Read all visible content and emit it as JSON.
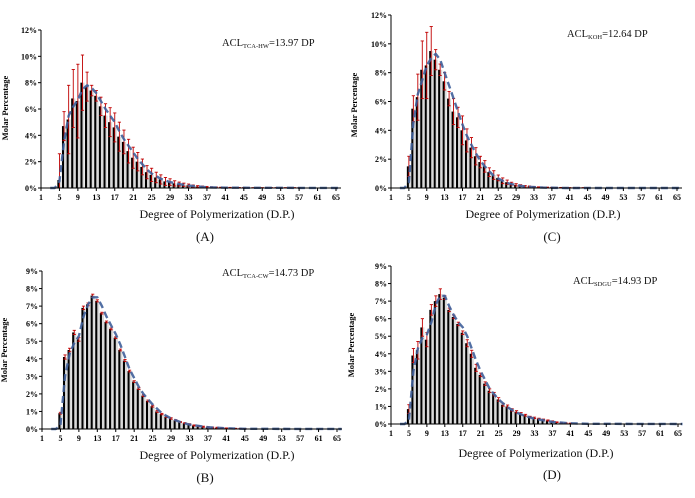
{
  "colors": {
    "bar": "#000000",
    "bar_alt": "#d9d9d9",
    "error": "#c00000",
    "fit": "#3f5f9a"
  },
  "chart_data": [
    {
      "id": "A",
      "type": "bar",
      "panel_label": "(A)",
      "annotation": {
        "prefix": "ACL",
        "subscript": "TCA-HW",
        "suffix": "=13.97  DP"
      },
      "xlabel": "Degree of Polymerization  (D.P.)",
      "ylabel": "Molar Percentage",
      "x_ticks": [
        1,
        5,
        9,
        13,
        17,
        21,
        25,
        29,
        33,
        37,
        41,
        45,
        49,
        53,
        57,
        61,
        65
      ],
      "y_ticks": [
        "0%",
        "2%",
        "4%",
        "6%",
        "8%",
        "10%",
        "12%"
      ],
      "ylim": [
        0,
        12
      ],
      "xlim": [
        1,
        66
      ],
      "x_start": 5,
      "values": [
        0.6,
        4.7,
        5.2,
        6.8,
        6.6,
        8.0,
        7.7,
        7.4,
        7.0,
        6.2,
        5.5,
        5.0,
        4.6,
        3.9,
        3.5,
        2.8,
        2.3,
        2.0,
        1.6,
        1.2,
        1.0,
        0.8,
        0.65,
        0.5,
        0.45,
        0.35,
        0.3,
        0.25,
        0.2,
        0.15,
        0.12,
        0.1,
        0.08,
        0.06,
        0.05,
        0.04,
        0.03,
        0.03,
        0.02,
        0.02,
        0.02,
        0.01,
        0.01,
        0.01,
        0.01,
        0.01,
        0.01,
        0.01,
        0.01,
        0.01,
        0.01,
        0.01,
        0.01
      ],
      "errors": [
        2.0,
        1.1,
        2.6,
        2.2,
        2.8,
        2.1,
        1.1,
        0.4,
        0.4,
        0.7,
        0.9,
        1.1,
        1.1,
        1.1,
        0.9,
        0.9,
        0.8,
        0.7,
        0.6,
        0.5,
        0.5,
        0.4,
        0.35,
        0.3,
        0.25,
        0.2,
        0.15,
        0.12,
        0.1,
        0.08,
        0.06,
        0.05,
        0.04,
        0.03,
        0.03,
        0.02,
        0.02,
        0.02,
        0.02,
        0.02,
        0.02,
        0.02,
        0.02,
        0.02,
        0.02,
        0.02,
        0.02,
        0.02,
        0.02,
        0.02,
        0.02,
        0.02,
        0.02
      ],
      "fit": [
        [
          3,
          0
        ],
        [
          4,
          0
        ],
        [
          5,
          0.5
        ],
        [
          6,
          3.5
        ],
        [
          7,
          5.5
        ],
        [
          8,
          6.2
        ],
        [
          9,
          6.7
        ],
        [
          10,
          7.5
        ],
        [
          11,
          7.8
        ],
        [
          12,
          7.6
        ],
        [
          13,
          7.2
        ],
        [
          14,
          6.6
        ],
        [
          15,
          6.0
        ],
        [
          16,
          5.5
        ],
        [
          17,
          5.0
        ],
        [
          18,
          4.3
        ],
        [
          19,
          3.7
        ],
        [
          20,
          3.2
        ],
        [
          21,
          2.7
        ],
        [
          22,
          2.2
        ],
        [
          23,
          1.8
        ],
        [
          24,
          1.4
        ],
        [
          25,
          1.1
        ],
        [
          27,
          0.7
        ],
        [
          29,
          0.45
        ],
        [
          31,
          0.3
        ],
        [
          33,
          0.18
        ],
        [
          37,
          0.05
        ],
        [
          41,
          0.02
        ],
        [
          66,
          0
        ]
      ]
    },
    {
      "id": "C",
      "type": "bar",
      "panel_label": "(C)",
      "annotation": {
        "prefix": "ACL",
        "subscript": "KOH",
        "suffix": "=12.64  DP"
      },
      "xlabel": "Degree of Polymerization  (D.P.)",
      "ylabel": "Molar Percentage",
      "x_ticks": [
        1,
        5,
        9,
        13,
        17,
        21,
        25,
        29,
        33,
        37,
        41,
        45,
        49,
        53,
        57,
        61,
        65
      ],
      "y_ticks": [
        "0%",
        "2%",
        "4%",
        "6%",
        "8%",
        "10%",
        "12%"
      ],
      "ylim": [
        0,
        12
      ],
      "xlim": [
        1,
        66
      ],
      "x_start": 5,
      "values": [
        1.5,
        5.5,
        6.3,
        8.2,
        8.5,
        9.5,
        8.9,
        8.2,
        7.4,
        6.2,
        5.3,
        4.9,
        4.0,
        3.3,
        2.8,
        2.2,
        1.8,
        1.5,
        1.1,
        0.9,
        0.7,
        0.5,
        0.4,
        0.3,
        0.22,
        0.17,
        0.12,
        0.1,
        0.08,
        0.06,
        0.05,
        0.04,
        0.03,
        0.02,
        0.02,
        0.01,
        0.01,
        0.01,
        0.01,
        0.01,
        0.01
      ],
      "errors": [
        0.7,
        0.9,
        1.6,
        2.0,
        2.3,
        1.7,
        0.7,
        0.4,
        0.6,
        0.5,
        0.9,
        0.7,
        1.0,
        0.8,
        0.7,
        0.6,
        0.4,
        0.4,
        0.3,
        0.3,
        0.2,
        0.2,
        0.15,
        0.1,
        0.08,
        0.06,
        0.05,
        0.04,
        0.03,
        0.02,
        0.02,
        0.02,
        0.02,
        0.02,
        0.02,
        0.02,
        0.02,
        0.02,
        0.02,
        0.02,
        0.02
      ],
      "fit": [
        [
          3,
          0
        ],
        [
          4,
          0
        ],
        [
          5,
          0.4
        ],
        [
          6,
          4.5
        ],
        [
          7,
          6.5
        ],
        [
          8,
          7.5
        ],
        [
          9,
          8.5
        ],
        [
          10,
          9.0
        ],
        [
          11,
          9.3
        ],
        [
          12,
          8.9
        ],
        [
          13,
          8.0
        ],
        [
          14,
          7.1
        ],
        [
          15,
          6.2
        ],
        [
          16,
          5.3
        ],
        [
          17,
          4.4
        ],
        [
          18,
          3.6
        ],
        [
          19,
          3.0
        ],
        [
          20,
          2.4
        ],
        [
          21,
          1.9
        ],
        [
          22,
          1.5
        ],
        [
          23,
          1.15
        ],
        [
          24,
          0.85
        ],
        [
          25,
          0.65
        ],
        [
          27,
          0.35
        ],
        [
          29,
          0.2
        ],
        [
          31,
          0.1
        ],
        [
          35,
          0.03
        ],
        [
          40,
          0
        ],
        [
          66,
          0
        ]
      ]
    },
    {
      "id": "B",
      "type": "bar",
      "panel_label": "(B)",
      "annotation": {
        "prefix": "ACL",
        "subscript": "TCA-CW",
        "suffix": "=14.73  DP"
      },
      "xlabel": "Degree of Polymerization  (D.P.)",
      "ylabel": "Molar Percentage",
      "x_ticks": [
        1,
        5,
        9,
        13,
        17,
        21,
        25,
        29,
        33,
        37,
        41,
        45,
        49,
        53,
        57,
        61,
        65
      ],
      "y_ticks": [
        "0%",
        "1%",
        "2%",
        "3%",
        "4%",
        "5%",
        "6%",
        "7%",
        "8%",
        "9%"
      ],
      "ylim": [
        0,
        9
      ],
      "xlim": [
        1,
        66
      ],
      "x_start": 5,
      "values": [
        0.9,
        4.1,
        4.5,
        5.5,
        5.1,
        6.9,
        7.1,
        7.6,
        7.3,
        6.6,
        6.1,
        5.7,
        5.2,
        4.5,
        3.9,
        3.3,
        2.7,
        2.3,
        1.9,
        1.6,
        1.3,
        1.0,
        0.85,
        0.7,
        0.6,
        0.5,
        0.4,
        0.33,
        0.27,
        0.2,
        0.16,
        0.13,
        0.1,
        0.08,
        0.07,
        0.06,
        0.04,
        0.03,
        0.02,
        0.02,
        0.01
      ],
      "errors": [
        0.05,
        0.12,
        0.1,
        0.12,
        0.1,
        0.1,
        0.08,
        0.08,
        0.06,
        0.05,
        0.05,
        0.05,
        0.05,
        0.05,
        0.06,
        0.05,
        0.05,
        0.05,
        0.05,
        0.05,
        0.05,
        0.05,
        0.04,
        0.04,
        0.04,
        0.03,
        0.03,
        0.03,
        0.03,
        0.03,
        0.03,
        0.03,
        0.03,
        0.03,
        0.03,
        0.03,
        0.02,
        0.02,
        0.02,
        0.02,
        0.02
      ],
      "fit": [
        [
          3,
          0
        ],
        [
          4,
          0
        ],
        [
          5,
          0.2
        ],
        [
          6,
          3.0
        ],
        [
          7,
          4.3
        ],
        [
          8,
          4.9
        ],
        [
          9,
          5.3
        ],
        [
          10,
          6.4
        ],
        [
          11,
          7.1
        ],
        [
          12,
          7.5
        ],
        [
          13,
          7.5
        ],
        [
          14,
          7.0
        ],
        [
          15,
          6.4
        ],
        [
          16,
          5.9
        ],
        [
          17,
          5.4
        ],
        [
          18,
          4.8
        ],
        [
          19,
          4.1
        ],
        [
          20,
          3.4
        ],
        [
          21,
          2.9
        ],
        [
          22,
          2.4
        ],
        [
          23,
          2.0
        ],
        [
          24,
          1.7
        ],
        [
          25,
          1.4
        ],
        [
          27,
          0.9
        ],
        [
          29,
          0.6
        ],
        [
          31,
          0.4
        ],
        [
          33,
          0.25
        ],
        [
          37,
          0.1
        ],
        [
          41,
          0.04
        ],
        [
          45,
          0.01
        ],
        [
          66,
          0
        ]
      ]
    },
    {
      "id": "D",
      "type": "bar",
      "panel_label": "(D)",
      "annotation": {
        "prefix": "ACL",
        "subscript": "SDGU",
        "suffix": "=14.93  DP"
      },
      "xlabel": "Degree of Polymerization  (D.P.)",
      "ylabel": "Molar Percentage",
      "x_ticks": [
        1,
        5,
        9,
        13,
        17,
        21,
        25,
        29,
        33,
        37,
        41,
        45,
        49,
        53,
        57,
        61,
        65
      ],
      "y_ticks": [
        "0%",
        "1%",
        "2%",
        "3%",
        "4%",
        "5%",
        "6%",
        "7%",
        "8%",
        "9%"
      ],
      "ylim": [
        0,
        9
      ],
      "xlim": [
        1,
        66
      ],
      "x_start": 5,
      "values": [
        0.85,
        3.9,
        4.2,
        5.5,
        4.8,
        6.5,
        7.0,
        7.4,
        7.2,
        6.5,
        6.1,
        5.7,
        5.2,
        4.6,
        4.0,
        3.2,
        2.8,
        2.3,
        1.9,
        1.7,
        1.4,
        1.1,
        1.0,
        0.8,
        0.7,
        0.6,
        0.5,
        0.4,
        0.35,
        0.3,
        0.25,
        0.2,
        0.15,
        0.1,
        0.07,
        0.05,
        0.03
      ],
      "errors": [
        0.25,
        0.4,
        0.5,
        0.5,
        0.4,
        0.3,
        0.3,
        0.3,
        0.1,
        0.1,
        0.1,
        0.1,
        0.1,
        0.2,
        0.2,
        0.2,
        0.1,
        0.1,
        0.1,
        0.1,
        0.1,
        0.08,
        0.08,
        0.07,
        0.06,
        0.05,
        0.05,
        0.04,
        0.04,
        0.03,
        0.03,
        0.03,
        0.03,
        0.02,
        0.02,
        0.02,
        0.02
      ],
      "fit": [
        [
          3,
          0
        ],
        [
          4,
          0
        ],
        [
          5,
          0.2
        ],
        [
          6,
          3.0
        ],
        [
          7,
          4.3
        ],
        [
          8,
          4.9
        ],
        [
          9,
          5.1
        ],
        [
          10,
          5.8
        ],
        [
          11,
          6.8
        ],
        [
          12,
          7.3
        ],
        [
          13,
          7.3
        ],
        [
          14,
          6.7
        ],
        [
          15,
          6.2
        ],
        [
          16,
          5.8
        ],
        [
          17,
          5.5
        ],
        [
          18,
          5.0
        ],
        [
          19,
          4.3
        ],
        [
          20,
          3.6
        ],
        [
          21,
          3.0
        ],
        [
          22,
          2.5
        ],
        [
          23,
          2.0
        ],
        [
          24,
          1.7
        ],
        [
          25,
          1.4
        ],
        [
          27,
          0.95
        ],
        [
          29,
          0.65
        ],
        [
          31,
          0.45
        ],
        [
          33,
          0.3
        ],
        [
          37,
          0.12
        ],
        [
          41,
          0.04
        ],
        [
          45,
          0.01
        ],
        [
          66,
          0
        ]
      ]
    }
  ]
}
